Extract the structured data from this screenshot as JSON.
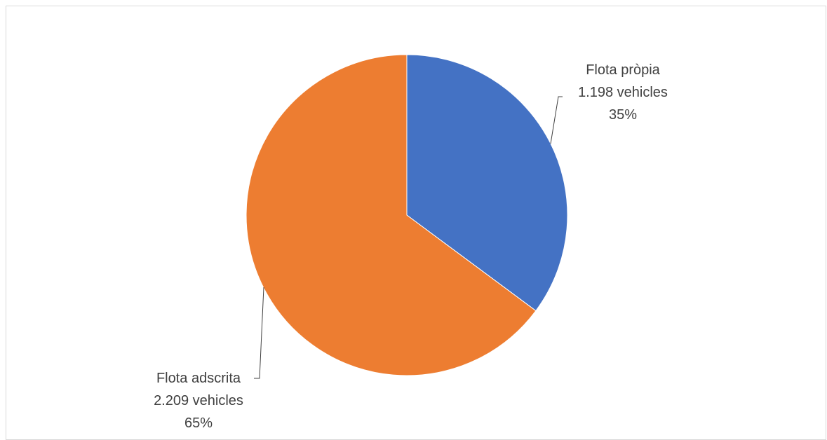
{
  "chart_data": {
    "type": "pie",
    "title": "",
    "slices": [
      {
        "name": "Flota pròpia",
        "value": 1198,
        "value_label": "1.198 vehicles",
        "percent": 35,
        "percent_label": "35%",
        "color": "#4472C4"
      },
      {
        "name": "Flota adscrita",
        "value": 2209,
        "value_label": "2.209 vehicles",
        "percent": 65,
        "percent_label": "65%",
        "color": "#ED7D31"
      }
    ],
    "start_angle": "12 o'clock",
    "direction": "clockwise",
    "legend": "none"
  }
}
